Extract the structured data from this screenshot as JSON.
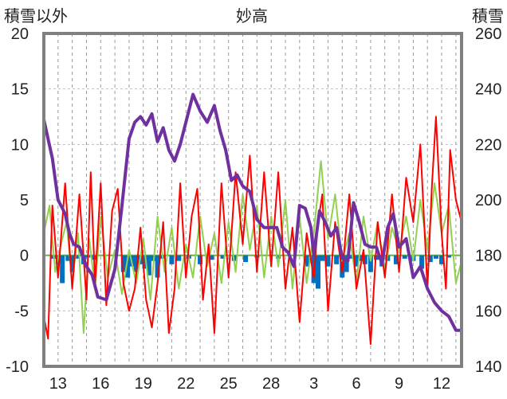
{
  "chart_data": {
    "type": "line",
    "title": "妙高",
    "y_left_label": "積雪以外",
    "y_right_label": "積雪",
    "y_left_range": [
      -10,
      20
    ],
    "y_right_range": [
      140,
      260
    ],
    "y_left_ticks": [
      "20",
      "15",
      "10",
      "5",
      "0",
      "-5",
      "-10"
    ],
    "y_right_ticks": [
      "260",
      "240",
      "220",
      "200",
      "180",
      "160",
      "140"
    ],
    "x_tick_labels": [
      "13",
      "16",
      "19",
      "22",
      "25",
      "28",
      "3",
      "6",
      "9",
      "12"
    ],
    "x_tick_day_index": [
      1,
      4,
      7,
      10,
      13,
      16,
      19,
      22,
      25,
      28
    ],
    "x_range_days": [
      0,
      29.4
    ],
    "grid": {
      "horizontal": true,
      "vertical_dashed_daily": true
    },
    "colors": {
      "snow_depth": "#7030a0",
      "temp_max": "#ff0000",
      "temp_min": "#92d050",
      "precip": "#0070c0",
      "frame": "#808080",
      "zero_line": "#70ad47"
    },
    "series": [
      {
        "axis": "right",
        "x": [
          0,
          0.3,
          0.6,
          1.0,
          1.5,
          1.8,
          2.1,
          2.5,
          3.0,
          3.4,
          3.8,
          4.4,
          5.0,
          5.5,
          6.0,
          6.4,
          6.8,
          7.2,
          7.6,
          8.0,
          8.4,
          8.8,
          9.2,
          9.6,
          10.0,
          10.5,
          11.0,
          11.5,
          12.0,
          12.4,
          12.8,
          13.2,
          13.6,
          14.0,
          14.5,
          15.0,
          15.5,
          16.0,
          16.4,
          16.8,
          17.2,
          17.6,
          18.0,
          18.4,
          18.8,
          19.0,
          19.4,
          19.8,
          20.2,
          20.6,
          21.0,
          21.4,
          21.8,
          22.2,
          22.6,
          23.0,
          23.4,
          23.8,
          24.2,
          24.6,
          25.0,
          25.5,
          26.0,
          26.5,
          27.0,
          27.5,
          28.0,
          28.5,
          29.0,
          29.4
        ],
        "values": [
          229,
          222,
          215,
          200,
          195,
          188,
          184,
          183,
          176,
          173,
          165,
          164,
          175,
          198,
          222,
          228,
          230,
          227,
          231,
          221,
          226,
          218,
          214,
          220,
          228,
          238,
          232,
          228,
          234,
          225,
          218,
          207,
          209,
          205,
          203,
          193,
          190,
          190,
          190,
          183,
          181,
          176,
          198,
          197,
          190,
          180,
          196,
          192,
          187,
          190,
          179,
          178,
          199,
          192,
          184,
          183,
          183,
          177,
          190,
          195,
          183,
          186,
          172,
          176,
          168,
          163,
          160,
          158,
          153,
          153
        ]
      },
      {
        "axis": "left",
        "x": [
          0,
          0.3,
          0.6,
          1.0,
          1.5,
          2.0,
          2.5,
          3.0,
          3.3,
          3.6,
          4.0,
          4.4,
          4.8,
          5.2,
          5.6,
          6.0,
          6.4,
          6.8,
          7.2,
          7.6,
          8.0,
          8.4,
          8.8,
          9.2,
          9.6,
          10.0,
          10.4,
          10.8,
          11.2,
          11.6,
          12.0,
          12.5,
          13.0,
          13.5,
          14.0,
          14.5,
          15.0,
          15.5,
          16.0,
          16.5,
          17.0,
          17.5,
          18.0,
          18.5,
          19.0,
          19.3,
          19.6,
          20.0,
          20.5,
          21.0,
          21.5,
          22.0,
          22.5,
          23.0,
          23.5,
          24.0,
          24.5,
          25.0,
          25.5,
          26.0,
          26.5,
          27.0,
          27.3,
          27.6,
          28.0,
          28.3,
          28.6,
          29.0,
          29.4
        ],
        "values": [
          -5.5,
          -7.5,
          4.5,
          -2.0,
          6.5,
          -3.0,
          5.5,
          -4.0,
          7.5,
          -2.5,
          6.5,
          -4.5,
          4.0,
          6.0,
          -2.5,
          -5.0,
          -3.0,
          2.5,
          -4.0,
          -6.5,
          -2.5,
          3.0,
          -7.0,
          -3.0,
          6.5,
          -2.0,
          3.5,
          6.0,
          -4.0,
          1.0,
          -7.0,
          6.5,
          -2.0,
          7.5,
          1.0,
          9.0,
          -1.5,
          7.5,
          -1.0,
          7.5,
          -3.0,
          2.5,
          -6.0,
          2.0,
          -2.0,
          3.0,
          5.5,
          -5.0,
          3.0,
          -1.5,
          5.5,
          -3.0,
          0.5,
          -8.0,
          3.0,
          -2.0,
          5.5,
          -1.5,
          7.0,
          3.0,
          10.0,
          -3.0,
          6.0,
          12.5,
          2.0,
          -3.0,
          9.5,
          5.0,
          3.0
        ]
      },
      {
        "axis": "left",
        "x": [
          0,
          0.4,
          0.8,
          1.2,
          1.6,
          2.0,
          2.4,
          2.8,
          3.2,
          3.6,
          4.0,
          4.5,
          5.0,
          5.5,
          6.0,
          6.5,
          7.0,
          7.5,
          8.0,
          8.5,
          9.0,
          9.5,
          10.0,
          10.5,
          11.0,
          11.5,
          12.0,
          12.5,
          13.0,
          13.5,
          14.0,
          14.5,
          15.0,
          15.5,
          16.0,
          16.5,
          17.0,
          17.5,
          18.0,
          18.5,
          19.0,
          19.5,
          20.0,
          20.5,
          21.0,
          21.5,
          22.0,
          22.5,
          23.0,
          23.5,
          24.0,
          24.5,
          25.0,
          25.5,
          26.0,
          26.5,
          27.0,
          27.5,
          28.0,
          28.5,
          29.0,
          29.4
        ],
        "values": [
          2.0,
          4.5,
          -1.5,
          1.0,
          3.0,
          -2.5,
          2.0,
          -7.0,
          1.5,
          -3.0,
          3.5,
          -2.0,
          0.5,
          -3.5,
          0.5,
          -2.5,
          1.5,
          -4.0,
          3.5,
          -1.5,
          2.5,
          -3.0,
          1.0,
          -2.0,
          3.5,
          -1.0,
          2.0,
          -2.5,
          3.0,
          -1.5,
          5.5,
          0.5,
          4.5,
          -2.0,
          3.5,
          -1.0,
          5.0,
          -3.0,
          3.5,
          -2.5,
          2.0,
          8.5,
          1.5,
          5.5,
          -0.5,
          2.0,
          -2.5,
          3.5,
          -0.5,
          3.0,
          -1.5,
          2.5,
          0.5,
          3.5,
          -0.5,
          5.0,
          0.5,
          6.5,
          2.0,
          4.5,
          -2.5,
          -0.5
        ]
      },
      {
        "axis": "left",
        "x": [
          0.7,
          1.0,
          1.3,
          1.7,
          2.0,
          2.4,
          2.8,
          3.1,
          3.5,
          5.6,
          5.9,
          6.2,
          6.5,
          6.8,
          7.1,
          7.4,
          7.7,
          8.0,
          8.3,
          9.0,
          9.5,
          10.2,
          11.0,
          11.8,
          12.6,
          13.4,
          14.2,
          15.0,
          16.5,
          18.5,
          19.0,
          19.3,
          19.6,
          20.0,
          20.6,
          21.0,
          21.3,
          21.6,
          22.0,
          22.3,
          22.6,
          23.0,
          23.4,
          23.8,
          24.2,
          24.8,
          25.4,
          26.0,
          26.6,
          27.2,
          27.6,
          28.0,
          28.5
        ],
        "values": [
          -0.3,
          -0.8,
          -2.5,
          -0.5,
          -1.5,
          -0.3,
          -0.8,
          -0.2,
          -0.4,
          -1.5,
          -2.0,
          -1.0,
          -1.5,
          -0.8,
          -1.2,
          -1.8,
          -0.5,
          -2.0,
          -0.3,
          -0.8,
          -0.5,
          -0.3,
          -0.8,
          -0.4,
          -0.3,
          -0.5,
          -0.6,
          -0.2,
          -0.3,
          -1.0,
          -2.5,
          -3.0,
          -0.5,
          -1.0,
          -0.8,
          -2.0,
          -1.5,
          -0.3,
          -1.0,
          -0.5,
          -0.8,
          -1.5,
          -0.4,
          -1.0,
          -0.5,
          -0.8,
          -0.3,
          -0.5,
          -1.2,
          -0.6,
          -0.3,
          -0.8,
          -0.2
        ]
      }
    ]
  }
}
